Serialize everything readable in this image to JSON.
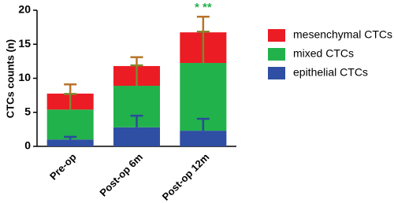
{
  "chart_data": {
    "type": "stacked_bar_error",
    "y_label": "CTCs counts (n)",
    "categories": [
      "Pre-op",
      "Post-op 6m",
      "Post-op 12m"
    ],
    "series": [
      {
        "name": "epithelial CTCs",
        "color": "#2e4fa3",
        "error_color": "#2b4a9c",
        "values": [
          1.0,
          2.8,
          2.3
        ],
        "errors": [
          0.4,
          1.7,
          1.75
        ]
      },
      {
        "name": "mixed CTCs",
        "color": "#22b24c",
        "error_color": "#7a8a2e",
        "values": [
          4.4,
          6.1,
          9.95
        ],
        "errors": [
          2.3,
          3.0,
          4.6
        ]
      },
      {
        "name": "mesenchymal CTCs",
        "color": "#ec1c24",
        "error_color": "#b8742a",
        "values": [
          2.35,
          2.9,
          4.5
        ],
        "errors": [
          1.35,
          1.3,
          2.3
        ]
      }
    ],
    "annotation": {
      "text": "* **",
      "category": 2,
      "color": "#22b24c"
    },
    "ylim": [
      0,
      20
    ],
    "yticks": [
      0,
      5,
      10,
      15,
      20
    ],
    "grid": false,
    "legend": "right"
  }
}
